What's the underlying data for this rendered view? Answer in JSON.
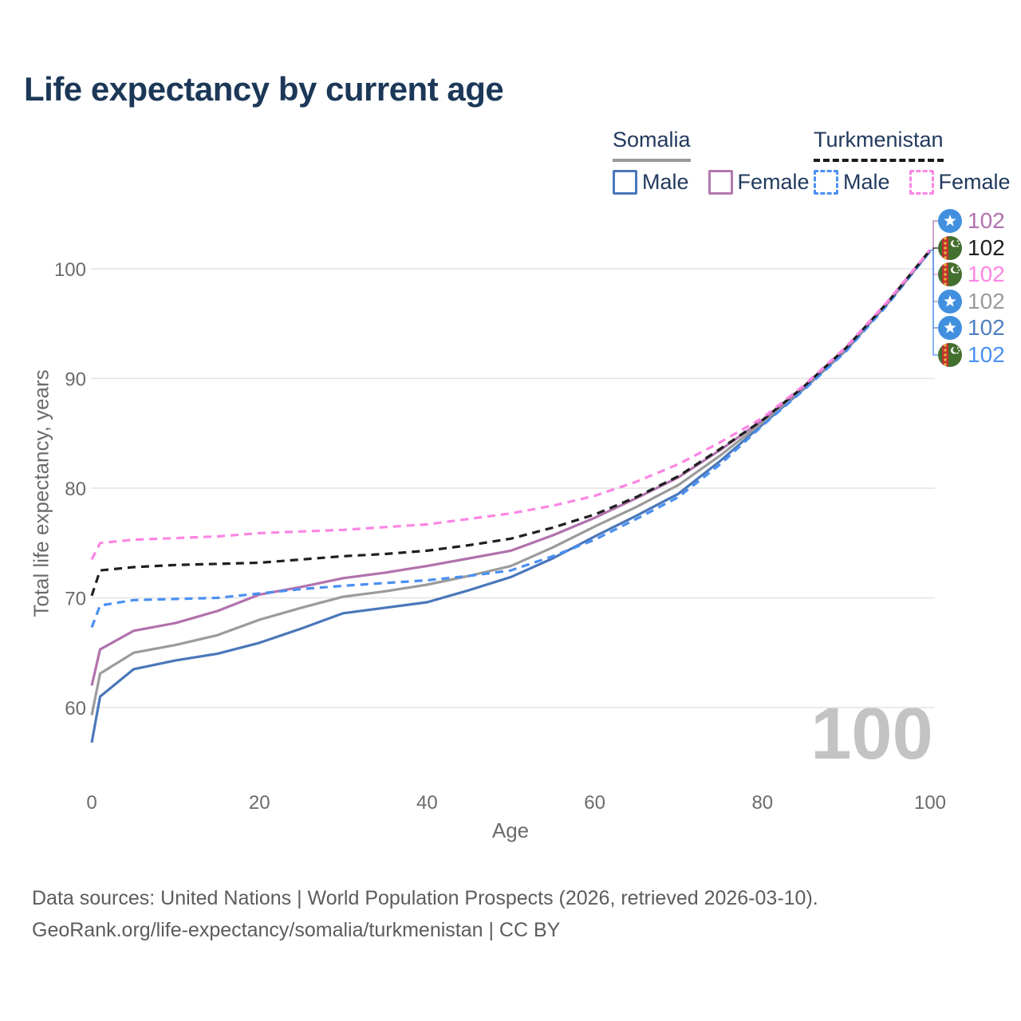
{
  "title": "Life expectancy by current age",
  "watermark": "100",
  "legend": {
    "groups": [
      {
        "name": "Somalia",
        "line_style": "solid",
        "underline_color": "#999999",
        "items": [
          {
            "label": "Male",
            "color": "#4a77ba",
            "dashed": false
          },
          {
            "label": "Female",
            "color": "#b379ae",
            "dashed": false
          }
        ]
      },
      {
        "name": "Turkmenistan",
        "line_style": "dashed",
        "underline_color": "#1a1a1a",
        "items": [
          {
            "label": "Male",
            "color": "#4a90f2",
            "dashed": true
          },
          {
            "label": "Female",
            "color": "#fc85e4",
            "dashed": true
          }
        ]
      }
    ]
  },
  "chart_data": {
    "type": "line",
    "title": "Life expectancy by current age",
    "xlabel": "Age",
    "ylabel": "Total life expectancy, years",
    "x_ticks": [
      0,
      20,
      40,
      60,
      80,
      100
    ],
    "y_ticks": [
      60,
      70,
      80,
      90,
      100
    ],
    "xlim": [
      0,
      100
    ],
    "ylim": [
      56,
      103
    ],
    "grid": "horizontal",
    "legend_position": "top-right",
    "ages": [
      0,
      1,
      5,
      10,
      15,
      20,
      25,
      30,
      35,
      40,
      45,
      50,
      55,
      60,
      65,
      70,
      75,
      80,
      85,
      90,
      95,
      100
    ],
    "series": [
      {
        "id": "somalia_male",
        "name": "Somalia Male",
        "color": "#4a77ba",
        "dashed": false,
        "values": [
          56.8,
          61.0,
          63.5,
          64.3,
          64.9,
          65.9,
          67.2,
          68.6,
          69.1,
          69.6,
          70.7,
          71.9,
          73.6,
          75.6,
          77.5,
          79.5,
          82.5,
          85.8,
          89.1,
          92.6,
          96.9,
          101.6
        ]
      },
      {
        "id": "somalia_total",
        "name": "Somalia Both sexes",
        "color": "#9b9b9b",
        "dashed": false,
        "values": [
          59.3,
          63.1,
          65.0,
          65.7,
          66.6,
          68.0,
          69.1,
          70.1,
          70.6,
          71.2,
          72.0,
          72.9,
          74.6,
          76.5,
          78.3,
          80.3,
          83.0,
          86.0,
          89.2,
          92.7,
          96.9,
          101.65
        ]
      },
      {
        "id": "somalia_female",
        "name": "Somalia Female",
        "color": "#b172ad",
        "dashed": false,
        "values": [
          62.0,
          65.3,
          67.0,
          67.7,
          68.8,
          70.3,
          71.0,
          71.8,
          72.3,
          72.9,
          73.6,
          74.3,
          75.7,
          77.3,
          79.1,
          81.0,
          83.5,
          86.2,
          89.3,
          92.8,
          97.0,
          101.7
        ]
      },
      {
        "id": "turkmenistan_male",
        "name": "Turkmenistan Male",
        "color": "#4a90f2",
        "dashed": true,
        "values": [
          67.3,
          69.3,
          69.8,
          69.9,
          70.0,
          70.4,
          70.8,
          71.1,
          71.35,
          71.6,
          72.0,
          72.5,
          73.8,
          75.3,
          77.2,
          79.2,
          82.2,
          85.7,
          89.0,
          92.5,
          96.8,
          101.6
        ]
      },
      {
        "id": "turkmenistan_total",
        "name": "Turkmenistan Both sexes",
        "color": "#1f1f1f",
        "dashed": true,
        "values": [
          70.2,
          72.5,
          72.8,
          73.0,
          73.1,
          73.2,
          73.5,
          73.8,
          74.0,
          74.3,
          74.8,
          75.4,
          76.4,
          77.6,
          79.2,
          81.1,
          83.6,
          86.2,
          89.3,
          92.8,
          97.0,
          101.7
        ]
      },
      {
        "id": "turkmenistan_female",
        "name": "Turkmenistan Female",
        "color": "#fc85e4",
        "dashed": true,
        "values": [
          73.5,
          75.0,
          75.3,
          75.45,
          75.6,
          75.9,
          76.05,
          76.2,
          76.45,
          76.7,
          77.2,
          77.7,
          78.4,
          79.3,
          80.6,
          82.2,
          84.2,
          86.4,
          89.4,
          92.9,
          97.1,
          101.75
        ]
      }
    ]
  },
  "end_labels": {
    "rows": [
      {
        "flag": "somalia",
        "color": "#b172ad",
        "value": "102",
        "y": 277
      },
      {
        "flag": "turkmenistan",
        "color": "#1f1f1f",
        "value": "102",
        "y": 311
      },
      {
        "flag": "turkmenistan",
        "color": "#fc85e4",
        "value": "102",
        "y": 344
      },
      {
        "flag": "somalia",
        "color": "#9b9b9b",
        "value": "102",
        "y": 378
      },
      {
        "flag": "somalia",
        "color": "#4e7fc0",
        "value": "102",
        "y": 411
      },
      {
        "flag": "turkmenistan",
        "color": "#4a90f2",
        "value": "102",
        "y": 445
      }
    ]
  },
  "flag_colors": {
    "somalia": {
      "bg": "#4190e0",
      "star": "#ffffff"
    },
    "turkmenistan": {
      "bg": "#44702f",
      "stripe": "#bf3430",
      "ornament": "#e8b43c",
      "crescent": "#ffffff"
    }
  },
  "footer": {
    "line1": "Data sources: United Nations | World Population Prospects (2026, retrieved 2026-03-10).",
    "line2": "GeoRank.org/life-expectancy/somalia/turkmenistan | CC BY"
  }
}
